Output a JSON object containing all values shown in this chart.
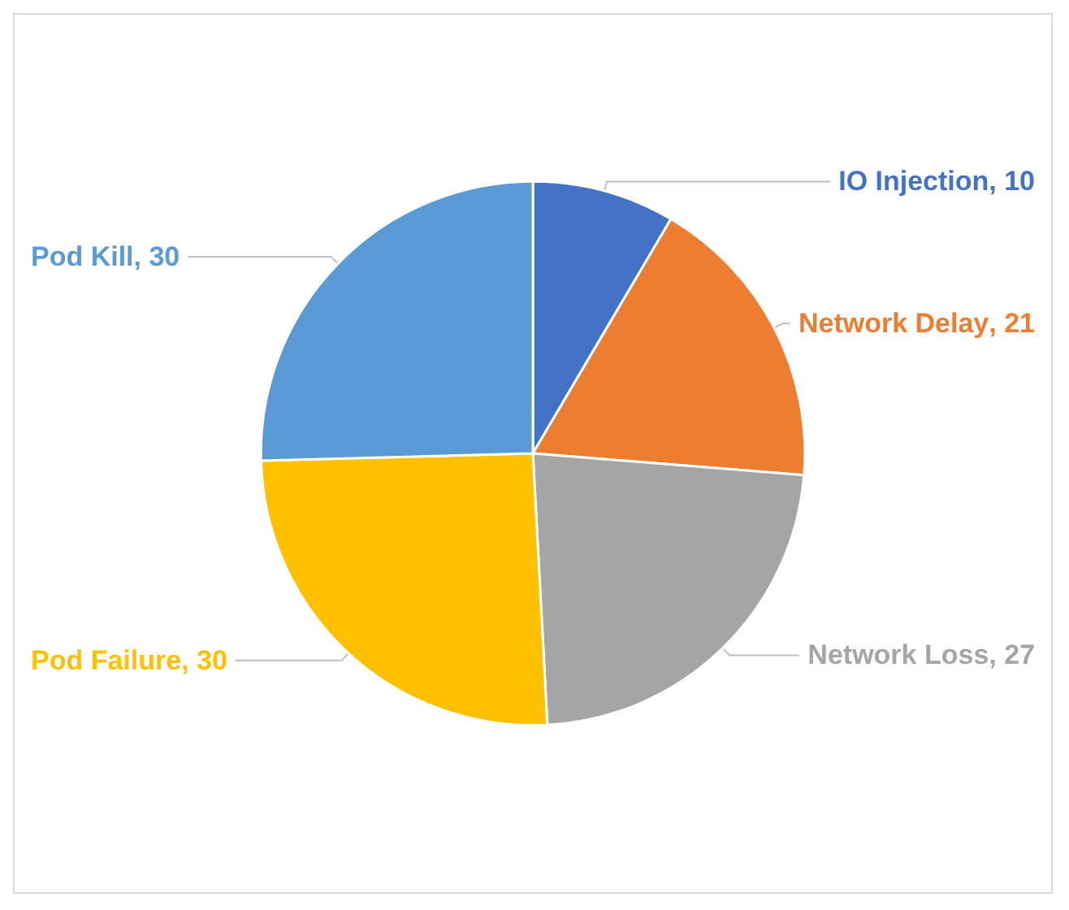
{
  "chart_data": {
    "type": "pie",
    "categories": [
      "IO Injection",
      "Network Delay",
      "Network Loss",
      "Pod Failure",
      "Pod Kill"
    ],
    "values": [
      10,
      21,
      27,
      30,
      30
    ],
    "colors": [
      "#4472c4",
      "#ed7d31",
      "#a5a5a5",
      "#ffc000",
      "#5b9bd5"
    ],
    "value_labels": [
      ", 10",
      ", 21",
      ", 27",
      ", 30",
      ", 30"
    ],
    "legend": false
  }
}
